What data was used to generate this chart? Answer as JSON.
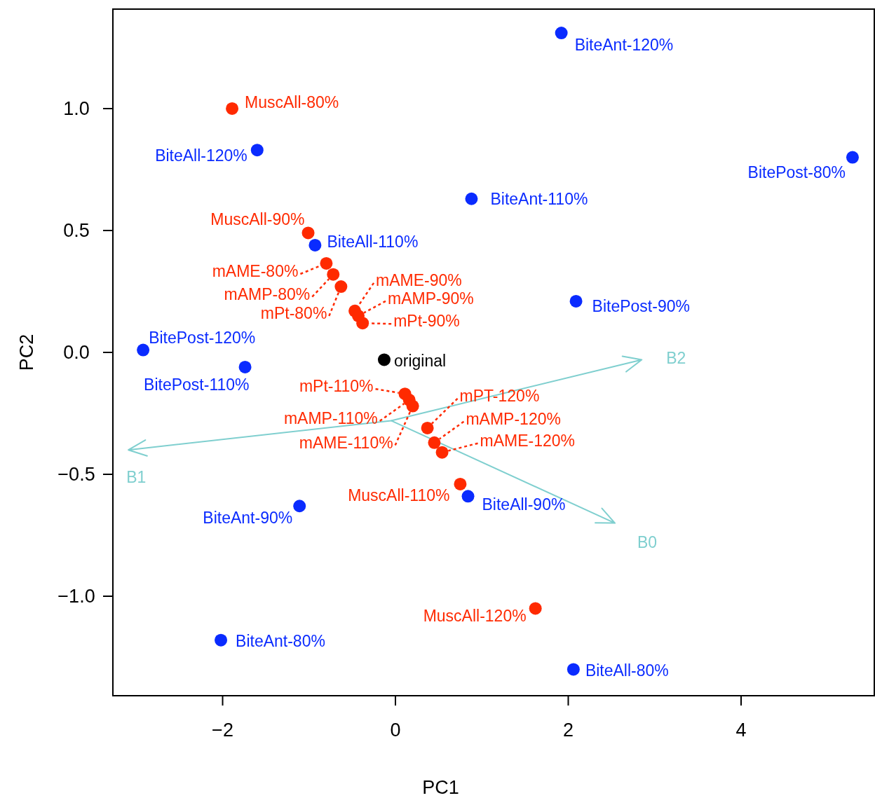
{
  "chart_data": {
    "type": "scatter",
    "xlabel": "PC1",
    "ylabel": "PC2",
    "xlim": [
      -3.27,
      5.55
    ],
    "ylim": [
      -1.408,
      1.408
    ],
    "xticks": [
      {
        "value": -2,
        "label": "−2"
      },
      0,
      2,
      4
    ],
    "yticks": [
      {
        "value": -1,
        "label": "−1.0"
      },
      {
        "value": -0.5,
        "label": "−0.5"
      },
      {
        "value": 0,
        "label": "0.0"
      },
      {
        "value": 0.5,
        "label": "0.5"
      },
      {
        "value": 1,
        "label": "1.0"
      }
    ],
    "grid": false,
    "marker": "circle",
    "series": [
      {
        "color": "#0a2bff",
        "x": [
          1.92,
          5.29,
          -1.6,
          0.88,
          -0.93,
          2.09,
          -2.92,
          -1.74,
          0.84,
          -1.11,
          -2.02,
          2.06
        ],
        "values": [
          1.31,
          0.8,
          0.83,
          0.63,
          0.44,
          0.21,
          0.01,
          -0.06,
          -0.59,
          -0.63,
          -1.18,
          -1.3
        ]
      },
      {
        "color": "#ff2a00",
        "x": [
          -1.89,
          -1.01,
          -0.8,
          -0.72,
          -0.63,
          -0.47,
          -0.43,
          -0.38,
          0.11,
          0.16,
          0.2,
          0.37,
          0.45,
          0.54,
          0.75,
          1.62
        ],
        "values": [
          1.0,
          0.49,
          0.365,
          0.32,
          0.27,
          0.17,
          0.15,
          0.12,
          -0.17,
          -0.195,
          -0.22,
          -0.31,
          -0.37,
          -0.41,
          -0.54,
          -1.05
        ]
      },
      {
        "color": "#000000",
        "x": [
          -0.13
        ],
        "values": [
          -0.03
        ]
      },
      {
        "type": "line",
        "color": "#7fcfcf",
        "marker": "none",
        "x": [
          -3.09,
          -0.05,
          2.85
        ],
        "values": [
          -0.4,
          -0.28,
          -0.03
        ]
      },
      {
        "type": "line",
        "color": "#7fcfcf",
        "marker": "none",
        "x": [
          -0.05,
          2.54
        ],
        "values": [
          -0.28,
          -0.7
        ]
      }
    ],
    "annotations": [
      {
        "text": "BiteAnt-120%",
        "x": 1.92,
        "y": 1.31
      },
      {
        "text": "BitePost-80%",
        "x": 5.29,
        "y": 0.8
      },
      {
        "text": "BiteAll-120%",
        "x": -1.6,
        "y": 0.83
      },
      {
        "text": "BiteAnt-110%",
        "x": 0.88,
        "y": 0.63
      },
      {
        "text": "BiteAll-110%",
        "x": -0.93,
        "y": 0.44
      },
      {
        "text": "BitePost-90%",
        "x": 2.09,
        "y": 0.21
      },
      {
        "text": "BitePost-120%",
        "x": -2.92,
        "y": 0.01
      },
      {
        "text": "BitePost-110%",
        "x": -1.74,
        "y": -0.06
      },
      {
        "text": "BiteAll-90%",
        "x": 0.84,
        "y": -0.59
      },
      {
        "text": "BiteAnt-90%",
        "x": -1.11,
        "y": -0.63
      },
      {
        "text": "BiteAnt-80%",
        "x": -2.02,
        "y": -1.18
      },
      {
        "text": "BiteAll-80%",
        "x": 2.06,
        "y": -1.3
      },
      {
        "text": "MuscAll-80%",
        "x": -1.89,
        "y": 1.0
      },
      {
        "text": "MuscAll-90%",
        "x": -1.01,
        "y": 0.49
      },
      {
        "text": "mAME-80%",
        "x": -0.8,
        "y": 0.365
      },
      {
        "text": "mAMP-80%",
        "x": -0.72,
        "y": 0.32
      },
      {
        "text": "mPt-80%",
        "x": -0.63,
        "y": 0.27
      },
      {
        "text": "mAME-90%",
        "x": -0.47,
        "y": 0.17
      },
      {
        "text": "mAMP-90%",
        "x": -0.43,
        "y": 0.15
      },
      {
        "text": "mPt-90%",
        "x": -0.38,
        "y": 0.12
      },
      {
        "text": "mPt-110%",
        "x": 0.11,
        "y": -0.17
      },
      {
        "text": "mAMP-110%",
        "x": 0.16,
        "y": -0.195
      },
      {
        "text": "mAME-110%",
        "x": 0.2,
        "y": -0.22
      },
      {
        "text": "mPT-120%",
        "x": 0.37,
        "y": -0.31
      },
      {
        "text": "mAMP-120%",
        "x": 0.45,
        "y": -0.37
      },
      {
        "text": "mAME-120%",
        "x": 0.54,
        "y": -0.41
      },
      {
        "text": "MuscAll-110%",
        "x": 0.75,
        "y": -0.54
      },
      {
        "text": "MuscAll-120%",
        "x": 1.62,
        "y": -1.05
      },
      {
        "text": "original",
        "x": -0.13,
        "y": -0.03
      },
      {
        "text": "B1",
        "x": -3.09,
        "y": -0.4
      },
      {
        "text": "B2",
        "x": 2.85,
        "y": -0.03
      },
      {
        "text": "B0",
        "x": 2.54,
        "y": -0.7
      }
    ]
  }
}
